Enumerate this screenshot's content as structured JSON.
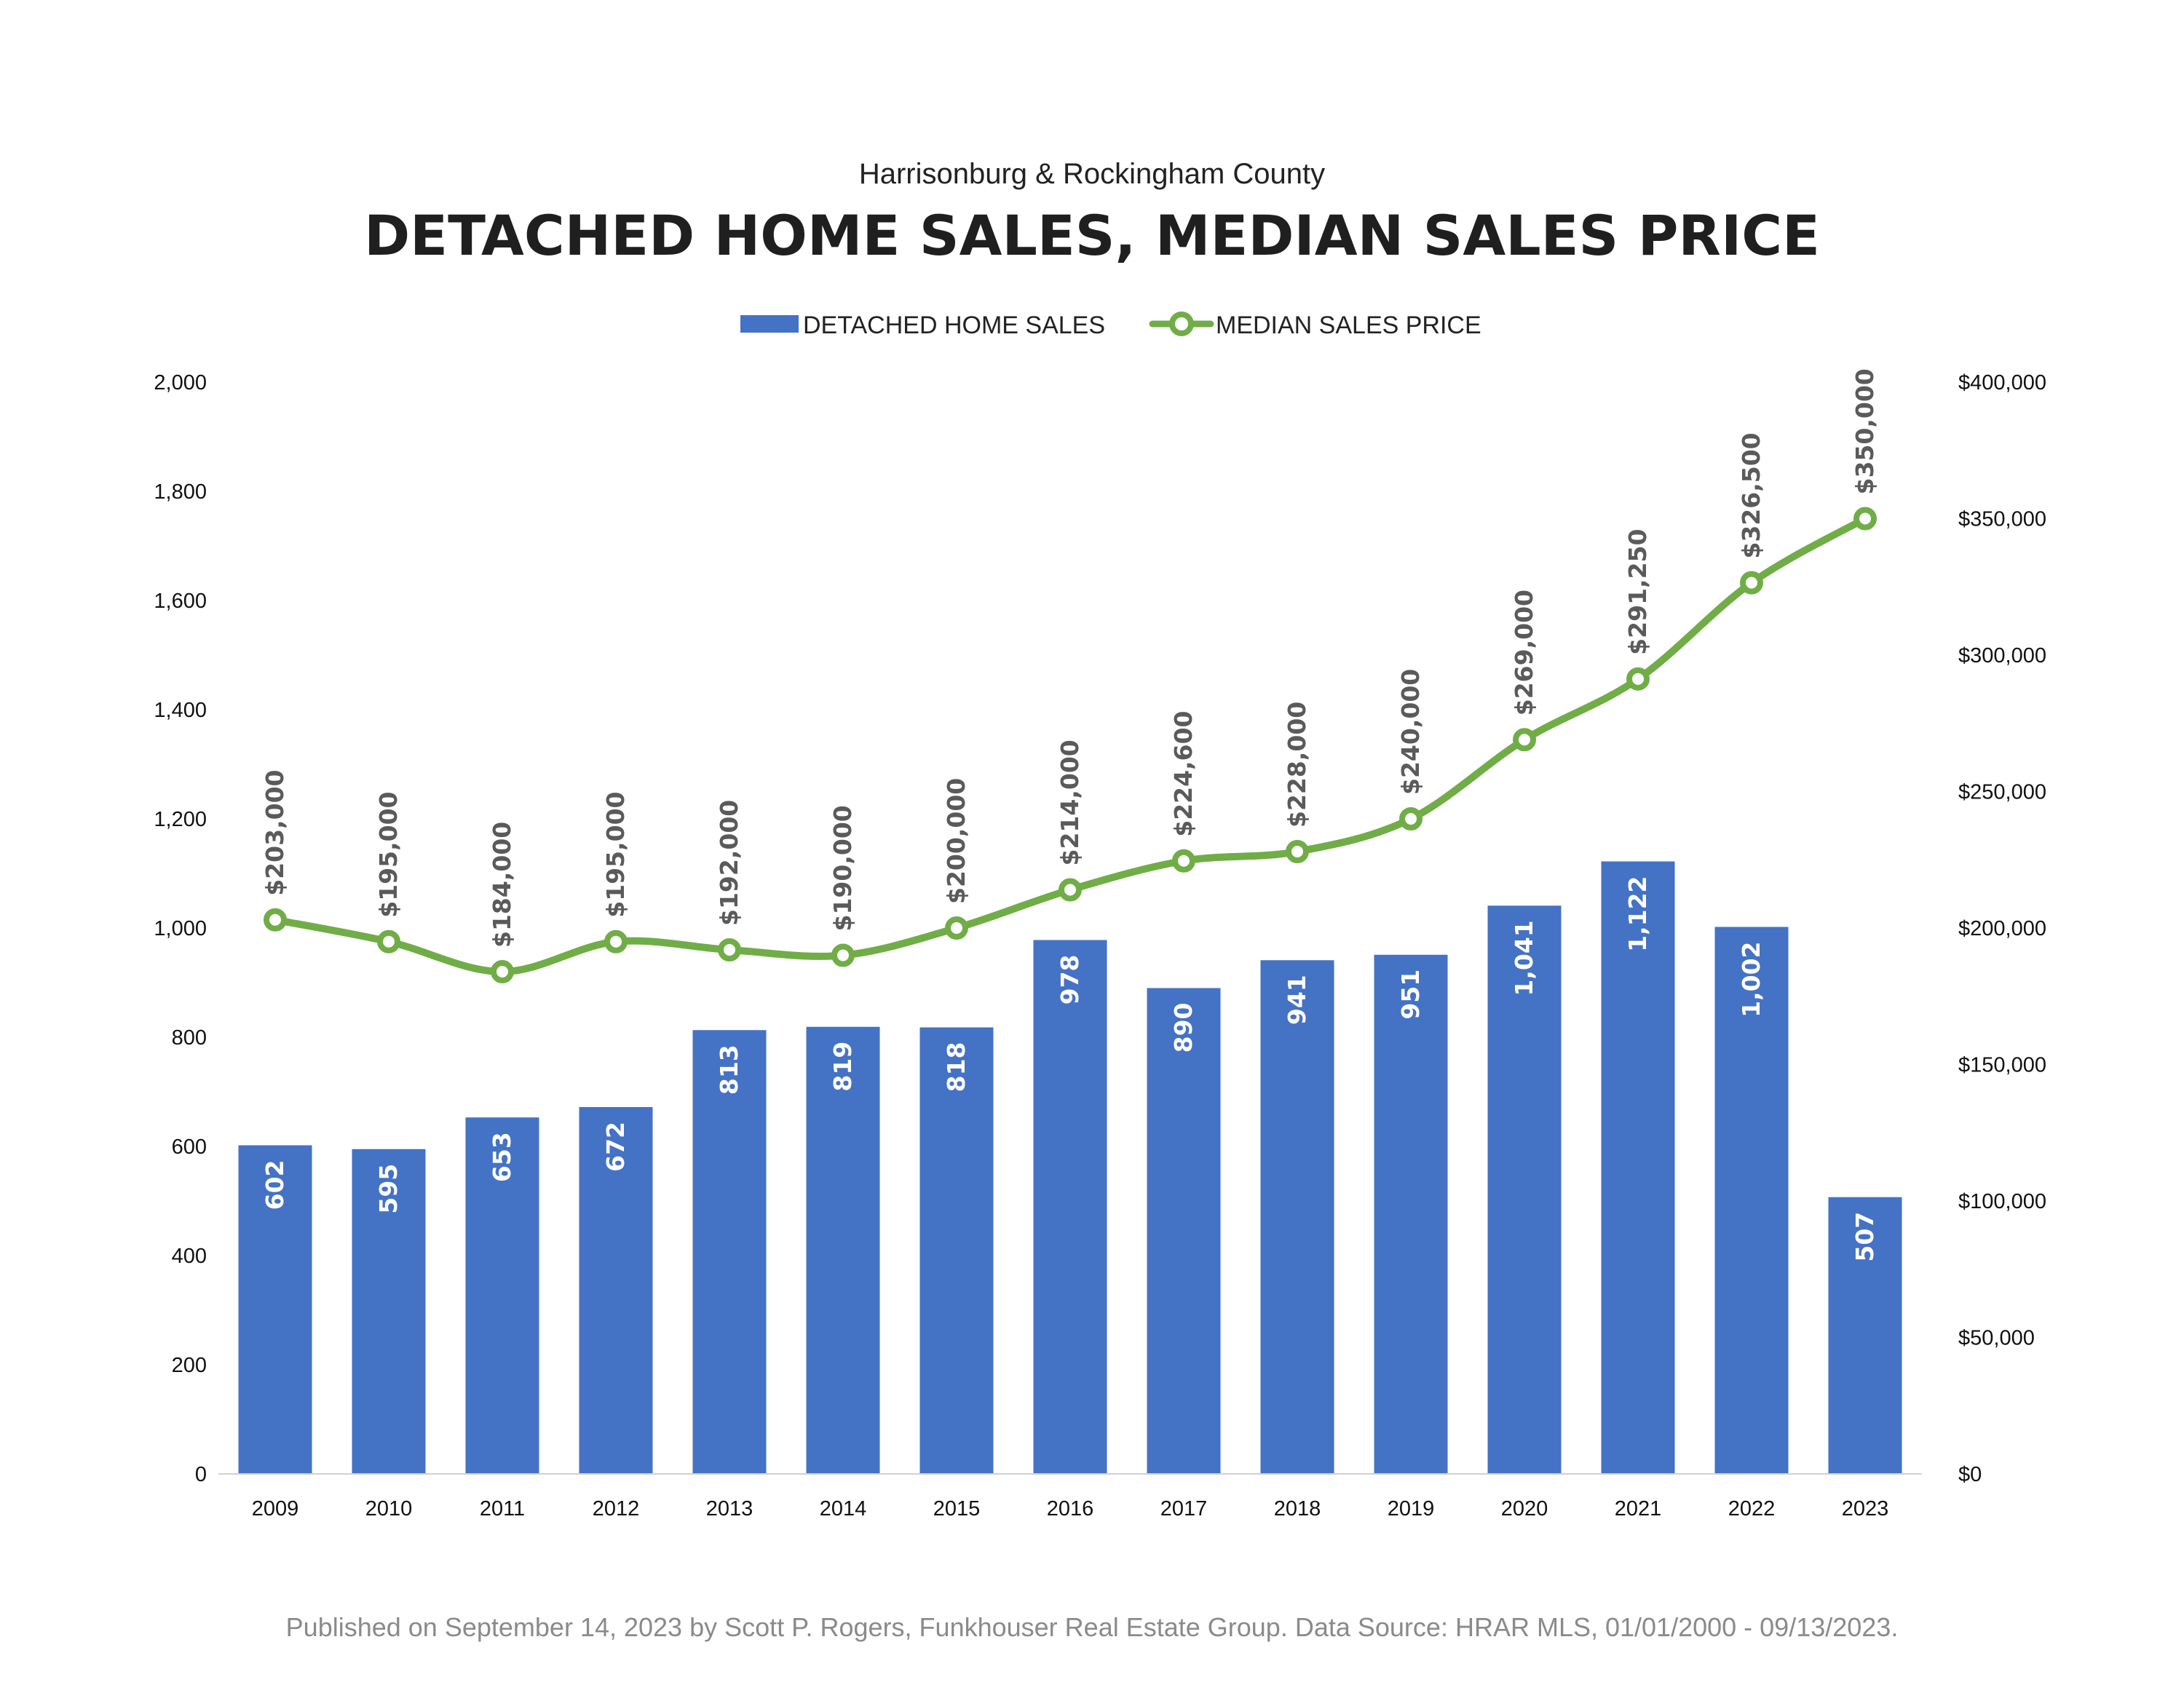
{
  "chart_data": {
    "type": "bar",
    "subtitle": "Harrisonburg & Rockingham County",
    "title": "DETACHED HOME SALES, MEDIAN SALES PRICE",
    "categories": [
      "2009",
      "2010",
      "2011",
      "2012",
      "2013",
      "2014",
      "2015",
      "2016",
      "2017",
      "2018",
      "2019",
      "2020",
      "2021",
      "2022",
      "2023"
    ],
    "series": [
      {
        "name": "DETACHED HOME SALES",
        "type": "bar",
        "axis": "left",
        "color": "#4472C4",
        "values": [
          602,
          595,
          653,
          672,
          813,
          819,
          818,
          978,
          890,
          941,
          951,
          1041,
          1122,
          1002,
          507
        ],
        "labels": [
          "602",
          "595",
          "653",
          "672",
          "813",
          "819",
          "818",
          "978",
          "890",
          "941",
          "951",
          "1,041",
          "1,122",
          "1,002",
          "507"
        ]
      },
      {
        "name": "MEDIAN SALES PRICE",
        "type": "line",
        "axis": "right",
        "color": "#70AD47",
        "values": [
          203000,
          195000,
          184000,
          195000,
          192000,
          190000,
          200000,
          214000,
          224600,
          228000,
          240000,
          269000,
          291250,
          326500,
          350000
        ],
        "labels": [
          "$203,000",
          "$195,000",
          "$184,000",
          "$195,000",
          "$192,000",
          "$190,000",
          "$200,000",
          "$214,000",
          "$224,600",
          "$228,000",
          "$240,000",
          "$269,000",
          "$291,250",
          "$326,500",
          "$350,000"
        ]
      }
    ],
    "y_left": {
      "ylim": [
        0,
        2000
      ],
      "ticks": [
        0,
        200,
        400,
        600,
        800,
        1000,
        1200,
        1400,
        1600,
        1800,
        2000
      ],
      "tick_labels": [
        "0",
        "200",
        "400",
        "600",
        "800",
        "1,000",
        "1,200",
        "1,400",
        "1,600",
        "1,800",
        "2,000"
      ]
    },
    "y_right": {
      "ylim": [
        0,
        400000
      ],
      "ticks": [
        0,
        50000,
        100000,
        150000,
        200000,
        250000,
        300000,
        350000,
        400000
      ],
      "tick_labels": [
        "$0",
        "$50,000",
        "$100,000",
        "$150,000",
        "$200,000",
        "$250,000",
        "$300,000",
        "$350,000",
        "$400,000"
      ]
    },
    "legend_position": "top",
    "grid": false,
    "footer": "Published on September 14, 2023 by Scott P. Rogers, Funkhouser Real Estate Group. Data Source: HRAR MLS, 01/01/2000 - 09/13/2023."
  }
}
